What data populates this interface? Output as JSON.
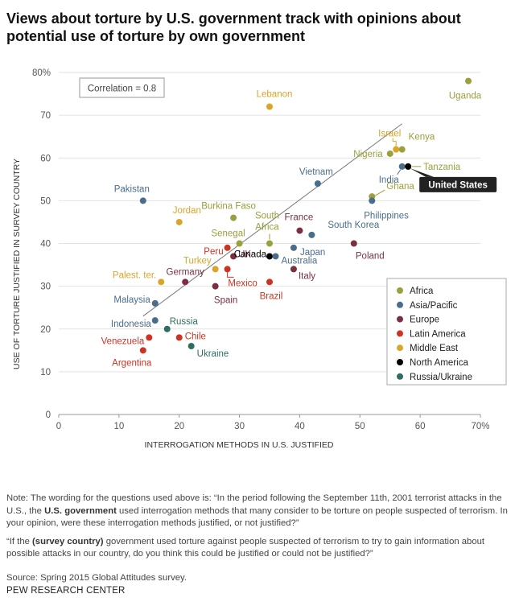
{
  "header": {
    "title_line1": "Views about torture by U.S. government track with opinions about",
    "title_line2": "potential use of torture by own government"
  },
  "notes": {
    "note1_a": "Note: The wording for the questions used above is: “In the period following the September 11th, 2001 terrorist attacks in the U.S., the ",
    "note1_bold": "U.S. government",
    "note1_b": " used interrogation methods that many consider to be torture on people suspected of terrorism. In your opinion, were these interrogation methods justified, or not justified?”",
    "note2_a": "“If the ",
    "note2_bold": "(survey country)",
    "note2_b": " government used torture against people suspected of terrorism to try to gain information about possible attacks in our country, do you think this could be justified or could not be justified?”",
    "source": "Source: Spring 2015 Global Attitudes survey.",
    "brand": "PEW RESEARCH CENTER"
  },
  "colors": {
    "Africa": "#9aa03c",
    "Asia/Pacific": "#4a6d8c",
    "Europe": "#7a3040",
    "Latin America": "#cc3322",
    "Middle East": "#d9a52a",
    "North America": "#000000",
    "Russia/Ukraine": "#2e6e62"
  },
  "chart_data": {
    "type": "scatter",
    "xlabel": "INTERROGATION METHODS IN U.S. JUSTIFIED",
    "ylabel": "USE OF TORTURE JUSTIFIED IN SURVEY COUNTRY",
    "xlim": [
      0,
      70
    ],
    "ylim": [
      0,
      80
    ],
    "xticks": [
      "0",
      "10",
      "20",
      "30",
      "40",
      "50",
      "60",
      "70%"
    ],
    "yticks": [
      "0",
      "10",
      "20",
      "30",
      "40",
      "50",
      "60",
      "70",
      "80%"
    ],
    "annotation": "Correlation = 0.8",
    "trendline": [
      [
        14,
        23
      ],
      [
        57,
        68
      ]
    ],
    "legend": {
      "position": "bottom-right",
      "entries": [
        "Africa",
        "Asia/Pacific",
        "Europe",
        "Latin America",
        "Middle East",
        "North America",
        "Russia/Ukraine"
      ]
    },
    "points": [
      {
        "label": "Uganda",
        "x": 68,
        "y": 78,
        "region": "Africa"
      },
      {
        "label": "Lebanon",
        "x": 35,
        "y": 72,
        "region": "Middle East"
      },
      {
        "label": "Israel",
        "x": 56,
        "y": 62,
        "region": "Middle East"
      },
      {
        "label": "Kenya",
        "x": 57,
        "y": 62,
        "region": "Africa"
      },
      {
        "label": "Nigeria",
        "x": 55,
        "y": 61,
        "region": "Africa"
      },
      {
        "label": "India",
        "x": 57,
        "y": 58,
        "region": "Asia/Pacific"
      },
      {
        "label": "Tanzania",
        "x": 58,
        "y": 58,
        "region": "Africa"
      },
      {
        "label": "United States",
        "x": 58,
        "y": 58,
        "region": "North America"
      },
      {
        "label": "Vietnam",
        "x": 43,
        "y": 54,
        "region": "Asia/Pacific"
      },
      {
        "label": "Pakistan",
        "x": 14,
        "y": 50,
        "region": "Asia/Pacific"
      },
      {
        "label": "Ghana",
        "x": 52,
        "y": 51,
        "region": "Africa"
      },
      {
        "label": "Philippines",
        "x": 52,
        "y": 50,
        "region": "Asia/Pacific"
      },
      {
        "label": "Burkina Faso",
        "x": 29,
        "y": 46,
        "region": "Africa"
      },
      {
        "label": "Jordan",
        "x": 20,
        "y": 45,
        "region": "Middle East"
      },
      {
        "label": "France",
        "x": 40,
        "y": 43,
        "region": "Europe"
      },
      {
        "label": "South Korea",
        "x": 42,
        "y": 42,
        "region": "Asia/Pacific"
      },
      {
        "label": "South Africa",
        "x": 35,
        "y": 40,
        "region": "Africa"
      },
      {
        "label": "Senegal",
        "x": 30,
        "y": 40,
        "region": "Africa"
      },
      {
        "label": "Poland",
        "x": 49,
        "y": 40,
        "region": "Europe"
      },
      {
        "label": "Japan",
        "x": 39,
        "y": 39,
        "region": "Asia/Pacific"
      },
      {
        "label": "Peru",
        "x": 28,
        "y": 39,
        "region": "Latin America"
      },
      {
        "label": "UK",
        "x": 29,
        "y": 37,
        "region": "Europe"
      },
      {
        "label": "Canada",
        "x": 35,
        "y": 37,
        "region": "North America"
      },
      {
        "label": "Australia",
        "x": 36,
        "y": 37,
        "region": "Asia/Pacific"
      },
      {
        "label": "Turkey",
        "x": 26,
        "y": 34,
        "region": "Middle East"
      },
      {
        "label": "Mexico",
        "x": 28,
        "y": 34,
        "region": "Latin America"
      },
      {
        "label": "Italy",
        "x": 39,
        "y": 34,
        "region": "Europe"
      },
      {
        "label": "Palest. ter.",
        "x": 17,
        "y": 31,
        "region": "Middle East"
      },
      {
        "label": "Germany",
        "x": 21,
        "y": 31,
        "region": "Europe"
      },
      {
        "label": "Brazil",
        "x": 35,
        "y": 31,
        "region": "Latin America"
      },
      {
        "label": "Spain",
        "x": 26,
        "y": 30,
        "region": "Europe"
      },
      {
        "label": "Malaysia",
        "x": 16,
        "y": 26,
        "region": "Asia/Pacific"
      },
      {
        "label": "Indonesia",
        "x": 16,
        "y": 22,
        "region": "Asia/Pacific"
      },
      {
        "label": "Russia",
        "x": 18,
        "y": 20,
        "region": "Russia/Ukraine"
      },
      {
        "label": "Venezuela",
        "x": 15,
        "y": 18,
        "region": "Latin America"
      },
      {
        "label": "Chile",
        "x": 20,
        "y": 18,
        "region": "Latin America"
      },
      {
        "label": "Ukraine",
        "x": 22,
        "y": 16,
        "region": "Russia/Ukraine"
      },
      {
        "label": "Argentina",
        "x": 14,
        "y": 15,
        "region": "Latin America"
      }
    ]
  }
}
